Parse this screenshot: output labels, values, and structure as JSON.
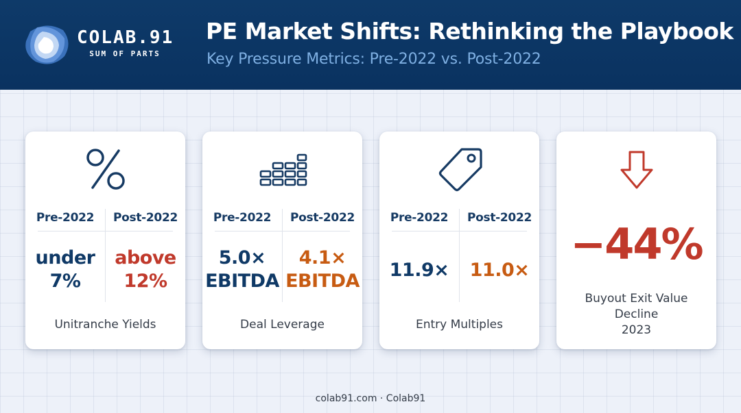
{
  "brand": {
    "name": "COLAB.91",
    "tagline": "SUM OF PARTS"
  },
  "header": {
    "title": "PE Market Shifts: Rethinking the Playbook",
    "subtitle": "Key Pressure Metrics: Pre-2022 vs. Post-2022"
  },
  "cards": [
    {
      "icon": "percent-icon",
      "pre_label": "Pre-2022",
      "post_label": "Post-2022",
      "pre_value_1": "under",
      "pre_value_2": "7%",
      "post_value_1": "above",
      "post_value_2": "12%",
      "post_color": "#c0392b",
      "caption": "Unitranche Yields"
    },
    {
      "icon": "stacked-bars-icon",
      "pre_label": "Pre-2022",
      "post_label": "Post-2022",
      "pre_value_1": "5.0×",
      "pre_value_2": "EBITDA",
      "post_value_1": "4.1×",
      "post_value_2": "EBITDA",
      "post_color": "#c75b12",
      "caption": "Deal Leverage"
    },
    {
      "icon": "price-tag-icon",
      "pre_label": "Pre-2022",
      "post_label": "Post-2022",
      "pre_value": "11.9×",
      "post_value": "11.0×",
      "post_color": "#c75b12",
      "caption": "Entry Multiples"
    },
    {
      "icon": "down-arrow-icon",
      "big_value": "−44%",
      "big_color": "#c0392b",
      "caption_1": "Buyout Exit Value",
      "caption_2": "Decline",
      "caption_3": "2023"
    }
  ],
  "colors": {
    "header_bg": "#0e3a69",
    "navy_text": "#0f3966",
    "red": "#c0392b",
    "orange": "#c75b12",
    "subtitle": "#7fb0e3"
  },
  "footer": "colab91.com · Colab91"
}
